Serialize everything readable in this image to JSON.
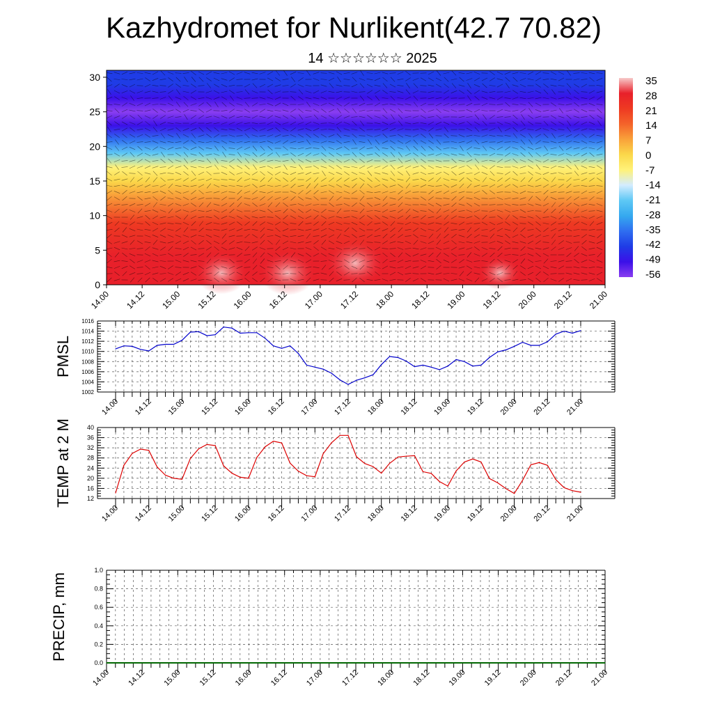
{
  "title": "Kazhydromet for Nurlikent(42.7 70.82)",
  "subtitle": "14 ☆☆☆☆☆☆ 2025",
  "time_labels": [
    "14.00",
    "14.12",
    "15.00",
    "15.12",
    "16.00",
    "16.12",
    "17.00",
    "17.12",
    "18.00",
    "18.12",
    "19.00",
    "19.12",
    "20.00",
    "20.12",
    "21.00"
  ],
  "chart_data": [
    {
      "type": "heatmap",
      "name_hint": "vertical cross-section",
      "yticks": [
        0,
        5,
        10,
        15,
        20,
        25,
        30
      ],
      "ylim": [
        0,
        31
      ],
      "colorbar": {
        "labels": [
          "35",
          "28",
          "21",
          "14",
          "7",
          "0",
          "-7",
          "-14",
          "-21",
          "-28",
          "-35",
          "-42",
          "-49",
          "-56"
        ],
        "colors": [
          "#f7c9c9",
          "#e8202a",
          "#ee3a22",
          "#f4632a",
          "#f9a23a",
          "#fbd84a",
          "#fff27a",
          "#d4ecff",
          "#5ec8f5",
          "#35a9ef",
          "#2f6ef0",
          "#1f3ce6",
          "#3b10e8",
          "#8a3ef0"
        ]
      },
      "profile": {
        "levels": [
          0,
          4,
          9,
          13,
          15,
          17,
          19,
          21,
          23,
          25,
          27,
          29,
          31
        ],
        "values": [
          30,
          27,
          20,
          10,
          0,
          -7,
          -20,
          -35,
          -48,
          -56,
          -50,
          -45,
          -42
        ]
      }
    },
    {
      "type": "line",
      "ylabel": "PMSL",
      "yticks": [
        1002,
        1004,
        1006,
        1008,
        1010,
        1012,
        1014,
        1016
      ],
      "ylim": [
        1002,
        1016
      ],
      "color": "#0000cc",
      "x": [
        0,
        3,
        6,
        9,
        12,
        15,
        18,
        21,
        24,
        27,
        30,
        33,
        36,
        39,
        42,
        45,
        48,
        51,
        54,
        57,
        60,
        63,
        66,
        69,
        72,
        75,
        78,
        81,
        84,
        87,
        90,
        93,
        96,
        99,
        102,
        105,
        108,
        111,
        114,
        117,
        120,
        123,
        126,
        129,
        132,
        135,
        138,
        141,
        144,
        147,
        150,
        153,
        156,
        159,
        162,
        165,
        168
      ],
      "values": [
        1010.5,
        1011.1,
        1011.0,
        1010.4,
        1010.1,
        1011.2,
        1011.4,
        1011.4,
        1012.2,
        1013.8,
        1013.9,
        1013.1,
        1013.3,
        1014.8,
        1014.6,
        1013.6,
        1013.7,
        1013.7,
        1012.6,
        1011.1,
        1010.6,
        1011.1,
        1009.6,
        1007.3,
        1006.9,
        1006.5,
        1005.7,
        1004.4,
        1003.5,
        1004.3,
        1004.8,
        1005.4,
        1007.4,
        1009.0,
        1008.8,
        1008.1,
        1007.0,
        1007.3,
        1006.9,
        1006.4,
        1007.1,
        1008.4,
        1008.0,
        1007.1,
        1007.3,
        1008.8,
        1009.9,
        1010.3,
        1011.0,
        1011.8,
        1011.2,
        1011.2,
        1011.9,
        1013.4,
        1014.0,
        1013.6,
        1014.1
      ]
    },
    {
      "type": "line",
      "ylabel": "TEMP at 2 M",
      "yticks": [
        12,
        16,
        20,
        24,
        28,
        32,
        36,
        40
      ],
      "ylim": [
        12,
        40
      ],
      "color": "#dd0000",
      "x": [
        0,
        3,
        6,
        9,
        12,
        15,
        18,
        21,
        24,
        27,
        30,
        33,
        36,
        39,
        42,
        45,
        48,
        51,
        54,
        57,
        60,
        63,
        66,
        69,
        72,
        75,
        78,
        81,
        84,
        87,
        90,
        93,
        96,
        99,
        102,
        105,
        108,
        111,
        114,
        117,
        120,
        123,
        126,
        129,
        132,
        135,
        138,
        141,
        144,
        147,
        150,
        153,
        156,
        159,
        162,
        165,
        168
      ],
      "values": [
        14.2,
        25.1,
        29.8,
        31.5,
        31.0,
        24.5,
        21.2,
        20.0,
        19.6,
        27.8,
        31.6,
        33.3,
        32.9,
        24.9,
        22.0,
        20.4,
        20.0,
        28.2,
        32.4,
        34.6,
        33.9,
        26.0,
        22.8,
        21.0,
        20.6,
        29.7,
        34.0,
        36.9,
        36.9,
        28.5,
        25.8,
        24.6,
        22.0,
        25.9,
        28.4,
        28.7,
        28.9,
        22.6,
        21.9,
        18.7,
        16.9,
        22.9,
        26.4,
        27.6,
        26.4,
        19.9,
        18.2,
        15.9,
        14.0,
        19.2,
        25.3,
        26.2,
        25.1,
        19.5,
        16.3,
        15.1,
        14.5
      ]
    },
    {
      "type": "line",
      "ylabel": "PRECIP, mm",
      "yticks": [
        "0.0",
        "0.2",
        "0.4",
        "0.6",
        "0.8",
        "1.0"
      ],
      "ylim": [
        0,
        1
      ],
      "color": "#006600",
      "x": [
        0,
        168
      ],
      "values": [
        0,
        0
      ]
    }
  ]
}
